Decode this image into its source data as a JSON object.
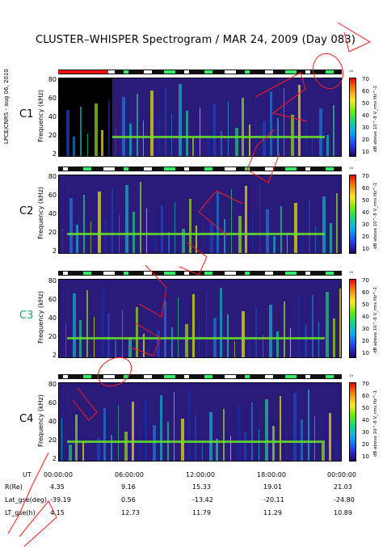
{
  "title": "CLUSTER–WHISPER Spectrogram / MAR 24, 2009 (Day 083)",
  "credit": "LPCE/CNRS - aug 06, 2010",
  "colors": {
    "annotation": "#ff1a1a",
    "c3_label": "#18a878",
    "background_spec": "#2a1a7a"
  },
  "chart_data": [
    {
      "type": "heatmap",
      "name": "C1",
      "ylabel": "Frequency (kHz)",
      "yticks": [
        "80",
        "60",
        "40",
        "20",
        "2"
      ],
      "ylim": [
        2,
        80
      ],
      "colorbar_label": "dB above 10^-8 V_rms Hz^-1",
      "colorbar_ticks": [
        "70",
        "60",
        "50",
        "40",
        "30",
        "20",
        "10"
      ],
      "clim": [
        10,
        70
      ],
      "xlim": [
        "00:00:00",
        "00:00:00"
      ]
    },
    {
      "type": "heatmap",
      "name": "C2",
      "ylabel": "Frequency (kHz)",
      "yticks": [
        "80",
        "60",
        "40",
        "20",
        "2"
      ],
      "ylim": [
        2,
        80
      ],
      "colorbar_label": "dB above 10^-8 V_rms Hz^-1",
      "colorbar_ticks": [
        "70",
        "60",
        "50",
        "40",
        "30",
        "20",
        "10"
      ],
      "clim": [
        10,
        70
      ]
    },
    {
      "type": "heatmap",
      "name": "C3",
      "ylabel": "Frequency (kHz)",
      "yticks": [
        "80",
        "60",
        "40",
        "20",
        "2"
      ],
      "ylim": [
        2,
        80
      ],
      "colorbar_label": "dB above 10^-8 V_rms Hz^-1",
      "colorbar_ticks": [
        "70",
        "60",
        "50",
        "40",
        "30",
        "20",
        "10"
      ],
      "clim": [
        10,
        70
      ]
    },
    {
      "type": "heatmap",
      "name": "C4",
      "ylabel": "Frequency (kHz)",
      "yticks": [
        "80",
        "60",
        "40",
        "20",
        "2"
      ],
      "ylim": [
        2,
        80
      ],
      "colorbar_label": "dB above 10^-8 V_rms Hz^-1",
      "colorbar_ticks": [
        "70",
        "60",
        "50",
        "40",
        "30",
        "20",
        "10"
      ],
      "clim": [
        10,
        70
      ]
    }
  ],
  "x_axis": {
    "ut_label": "UT",
    "ut_ticks": [
      "00:00:00",
      "06:00:00",
      "12:00:00",
      "18:00:00",
      "00:00:00"
    ],
    "rows": [
      {
        "label": "R(Re)",
        "values": [
          "4.35",
          "9.16",
          "15.33",
          "19.01",
          "21.03"
        ]
      },
      {
        "label": "Lat_gse(deg)",
        "values": [
          "-39.19",
          "0.56",
          "-13.42",
          "-20.11",
          "-24.80"
        ]
      },
      {
        "label": "LT_gse(h)",
        "values": [
          "4.15",
          "12.73",
          "11.79",
          "11.29",
          "10.89"
        ]
      }
    ]
  }
}
